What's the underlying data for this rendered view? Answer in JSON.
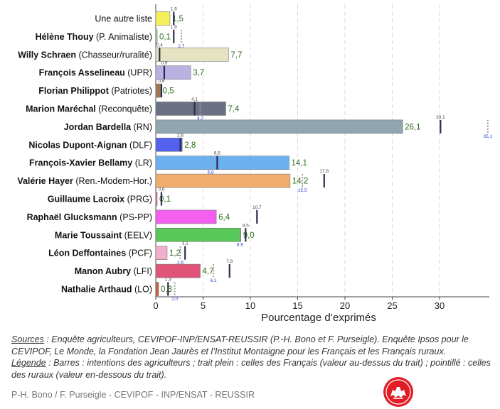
{
  "chart_data": {
    "type": "bar",
    "orientation": "horizontal",
    "xlabel": "Pourcentage d’exprimés",
    "xlim": [
      0,
      35
    ],
    "xticks": [
      0,
      5,
      10,
      15,
      20,
      25,
      30
    ],
    "grid": "vertical-dashed",
    "rows": [
      {
        "name": "Une autre liste",
        "party": "",
        "bold": false,
        "color": "#f5f05a",
        "farmers": 1.5,
        "farmers_label": "1,5",
        "french": 1.9,
        "french_label": "1,9",
        "rural": null,
        "rural_label": ""
      },
      {
        "name": "Hélène Thouy",
        "party": " (P. Animaliste)",
        "bold": true,
        "color": "#9bd07a",
        "farmers": 0.1,
        "farmers_label": "0,1",
        "french": 1.9,
        "french_label": "1,9",
        "rural": 2.7,
        "rural_label": "2,7"
      },
      {
        "name": "Willy Schraen",
        "party": " (Chasseur/ruralité)",
        "bold": true,
        "color": "#e6e3c3",
        "farmers": 7.7,
        "farmers_label": "7,7",
        "french": 0.4,
        "french_label": "0,4",
        "rural": null,
        "rural_label": ""
      },
      {
        "name": "François Asselineau",
        "party": " (UPR)",
        "bold": true,
        "color": "#b9b1e2",
        "farmers": 3.7,
        "farmers_label": "3,7",
        "french": 0.9,
        "french_label": "0,9",
        "rural": null,
        "rural_label": ""
      },
      {
        "name": "Florian Philippot",
        "party": " (Patriotes)",
        "bold": true,
        "color": "#a07553",
        "farmers": 0.5,
        "farmers_label": "0,5",
        "french": 0.6,
        "french_label": "0,6",
        "rural": null,
        "rural_label": ""
      },
      {
        "name": "Marion Maréchal",
        "party": " (Reconquête)",
        "bold": true,
        "color": "#6c7084",
        "farmers": 7.4,
        "farmers_label": "7,4",
        "french": 4.1,
        "french_label": "4,1",
        "rural": 4.7,
        "rural_label": "4,7"
      },
      {
        "name": "Jordan Bardella",
        "party": " (RN)",
        "bold": true,
        "color": "#91a6b0",
        "farmers": 26.1,
        "farmers_label": "26,1",
        "french": 30.1,
        "french_label": "30,1",
        "rural": 35.1,
        "rural_label": "35,1"
      },
      {
        "name": "Nicolas Dupont-Aignan",
        "party": " (DLF)",
        "bold": true,
        "color": "#5261ee",
        "farmers": 2.8,
        "farmers_label": "2,8",
        "french": 2.6,
        "french_label": "2,6",
        "rural": null,
        "rural_label": ""
      },
      {
        "name": "François-Xavier Bellamy",
        "party": " (LR)",
        "bold": true,
        "color": "#6bb1f2",
        "farmers": 14.1,
        "farmers_label": "14,1",
        "french": 6.5,
        "french_label": "6,5",
        "rural": 5.8,
        "rural_label": "5,8"
      },
      {
        "name": "Valérie Hayer",
        "party": " (Ren.-Modem-Hor.)",
        "bold": true,
        "color": "#f1ad6b",
        "farmers": 14.2,
        "farmers_label": "14,2",
        "french": 17.8,
        "french_label": "17,8",
        "rural": 15.5,
        "rural_label": "15,5"
      },
      {
        "name": "Guillaume Lacroix",
        "party": " (PRG)",
        "bold": true,
        "color": "#f06ca4",
        "farmers": 0.1,
        "farmers_label": "0,1",
        "french": 0.6,
        "french_label": "0,6",
        "rural": null,
        "rural_label": ""
      },
      {
        "name": "Raphaël Glucksmann",
        "party": " (PS-PP)",
        "bold": true,
        "color": "#f35fef",
        "farmers": 6.4,
        "farmers_label": "6,4",
        "french": 10.7,
        "french_label": "10,7",
        "rural": null,
        "rural_label": ""
      },
      {
        "name": "Marie Toussaint",
        "party": " (EELV)",
        "bold": true,
        "color": "#58c858",
        "farmers": 9.0,
        "farmers_label": "9,0",
        "french": 9.5,
        "french_label": "9,5",
        "rural": 8.9,
        "rural_label": "8,9"
      },
      {
        "name": "Léon Deffontaines",
        "party": " (PCF)",
        "bold": true,
        "color": "#f2aecd",
        "farmers": 1.2,
        "farmers_label": "1,2",
        "french": 3.1,
        "french_label": "3,1",
        "rural": 2.6,
        "rural_label": "2,6"
      },
      {
        "name": "Manon Aubry",
        "party": " (LFI)",
        "bold": true,
        "color": "#df5478",
        "farmers": 4.7,
        "farmers_label": "4,7",
        "french": 7.8,
        "french_label": "7,8",
        "rural": 6.1,
        "rural_label": "6,1"
      },
      {
        "name": "Nathalie Arthaud",
        "party": " (LO)",
        "bold": true,
        "color": "#c7623b",
        "farmers": 0.3,
        "farmers_label": "0,3",
        "french": 1.3,
        "french_label": "1,3",
        "rural": 2.0,
        "rural_label": "2,0"
      }
    ]
  },
  "notes": {
    "sources_label": "Sources",
    "sources_text": " : Enquête agriculteurs, CEVIPOF-INP/ENSAT-REUSSIR (P.-H. Bono et F. Purseigle). Enquête Ipsos pour le CEVIPOF, Le Monde, la Fondation Jean Jaurès et l’Institut Montaigne pour les Français et les Français ruraux.",
    "legend_label": "Légende",
    "legend_text": " : Barres : intentions des agriculteurs ; trait plein : celles des Français (valeur au-dessus du trait) ; pointillé : celles des ruraux (valeur en-dessous du trait)."
  },
  "footer": "P-H. Bono / F. Purseigle - CEVIPOF - INP/ENSAT - REUSSIR",
  "logo_icon": "red-round-seal-with-white-animal-emblem"
}
